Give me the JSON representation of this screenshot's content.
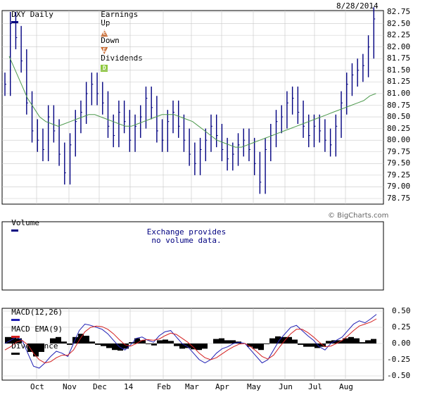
{
  "header": {
    "symbol_label": "DXY Daily",
    "earnings_label": "Earnings",
    "up_label": "Up",
    "up_badge": "E",
    "down_label": "Down",
    "down_badge": "E",
    "dividends_label": "Dividends",
    "dividends_badge": "D",
    "date": "8/28/2014"
  },
  "volume_panel": {
    "title": "Volume",
    "credit": "© BigCharts.com",
    "note": "Exchange provides\nno volume data."
  },
  "macd_panel": {
    "macd_label": "MACD(12,26)",
    "ema_label": "MACD EMA(9)",
    "divergence_label": "Divergence"
  },
  "colors": {
    "price": "#000080",
    "moving_average": "#4e9a4e",
    "macd": "#1f1fb4",
    "macd_ema": "#d42020",
    "divergence": "#000000",
    "grid": "#c8c8c8"
  },
  "chart_data": [
    {
      "type": "ohlc",
      "title": "DXY Daily",
      "x_labels": [
        "Oct",
        "Nov",
        "Dec",
        "14",
        "Feb",
        "Mar",
        "Apr",
        "May",
        "Jun",
        "Jul",
        "Aug"
      ],
      "y_ticks": [
        "82.75",
        "82.50",
        "82.25",
        "82.00",
        "81.75",
        "81.50",
        "81.25",
        "81.00",
        "80.75",
        "80.50",
        "80.25",
        "80.00",
        "79.75",
        "79.50",
        "79.25",
        "79.00",
        "78.75"
      ],
      "ylim": [
        78.75,
        82.75
      ],
      "grid": true,
      "close": [
        81.2,
        82.5,
        82.2,
        81.7,
        80.8,
        80.2,
        80.0,
        79.8,
        80.5,
        80.2,
        79.7,
        79.3,
        79.9,
        80.4,
        80.6,
        81.0,
        81.2,
        81.0,
        80.8,
        80.3,
        80.1,
        80.6,
        80.4,
        80.0,
        80.3,
        80.5,
        80.9,
        80.7,
        80.2,
        80.0,
        80.4,
        80.6,
        80.3,
        80.0,
        79.7,
        79.5,
        79.8,
        80.0,
        80.3,
        80.1,
        79.8,
        79.6,
        79.7,
        79.9,
        80.0,
        79.8,
        79.5,
        79.1,
        79.8,
        80.1,
        80.4,
        80.5,
        80.8,
        80.9,
        80.6,
        80.3,
        80.1,
        80.3,
        80.2,
        80.0,
        79.9,
        80.3,
        80.8,
        81.2,
        81.4,
        81.5,
        81.6,
        82.0,
        82.6
      ],
      "series": [
        {
          "name": "",
          "kind": "moving_average",
          "values": [
            81.8,
            81.5,
            81.2,
            80.9,
            80.7,
            80.5,
            80.4,
            80.35,
            80.3,
            80.35,
            80.4,
            80.45,
            80.5,
            80.55,
            80.55,
            80.5,
            80.45,
            80.4,
            80.35,
            80.3,
            80.3,
            80.35,
            80.4,
            80.45,
            80.5,
            80.55,
            80.55,
            80.55,
            80.5,
            80.45,
            80.4,
            80.3,
            80.2,
            80.1,
            80.0,
            79.95,
            79.9,
            79.85,
            79.85,
            79.9,
            79.95,
            80.0,
            80.05,
            80.1,
            80.15,
            80.2,
            80.25,
            80.3,
            80.35,
            80.4,
            80.45,
            80.5,
            80.55,
            80.6,
            80.65,
            80.7,
            80.75,
            80.8,
            80.85,
            80.95,
            81.0
          ]
        }
      ]
    },
    {
      "type": "line",
      "title": "MACD",
      "x_labels": [
        "Oct",
        "Nov",
        "Dec",
        "14",
        "Feb",
        "Mar",
        "Apr",
        "May",
        "Jun",
        "Jul",
        "Aug"
      ],
      "y_ticks": [
        "0.50",
        "0.25",
        "0.00",
        "-0.25",
        "-0.50"
      ],
      "ylim": [
        -0.5,
        0.5
      ],
      "series": [
        {
          "name": "MACD(12,26)",
          "values": [
            0.0,
            0.05,
            0.1,
            0.05,
            -0.15,
            -0.35,
            -0.38,
            -0.3,
            -0.2,
            -0.12,
            -0.15,
            -0.2,
            0.0,
            0.2,
            0.3,
            0.28,
            0.25,
            0.22,
            0.15,
            0.05,
            -0.05,
            -0.1,
            -0.02,
            0.08,
            0.1,
            0.05,
            0.02,
            0.12,
            0.18,
            0.2,
            0.1,
            0.0,
            -0.05,
            -0.15,
            -0.25,
            -0.3,
            -0.25,
            -0.15,
            -0.08,
            -0.05,
            0.0,
            0.02,
            0.0,
            -0.1,
            -0.2,
            -0.3,
            -0.25,
            -0.1,
            0.05,
            0.15,
            0.25,
            0.28,
            0.2,
            0.12,
            0.05,
            -0.05,
            -0.1,
            0.0,
            0.05,
            0.1,
            0.2,
            0.3,
            0.35,
            0.32,
            0.38,
            0.45
          ]
        },
        {
          "name": "MACD EMA(9)",
          "values": [
            -0.1,
            -0.05,
            0.02,
            0.05,
            -0.02,
            -0.15,
            -0.25,
            -0.3,
            -0.28,
            -0.22,
            -0.18,
            -0.18,
            -0.1,
            0.05,
            0.18,
            0.25,
            0.27,
            0.26,
            0.22,
            0.15,
            0.06,
            -0.02,
            -0.04,
            0.0,
            0.05,
            0.06,
            0.05,
            0.07,
            0.12,
            0.16,
            0.14,
            0.08,
            0.02,
            -0.06,
            -0.15,
            -0.22,
            -0.25,
            -0.22,
            -0.16,
            -0.1,
            -0.05,
            -0.01,
            0.0,
            -0.05,
            -0.12,
            -0.2,
            -0.24,
            -0.18,
            -0.06,
            0.05,
            0.15,
            0.22,
            0.22,
            0.17,
            0.1,
            0.02,
            -0.05,
            -0.04,
            0.0,
            0.05,
            0.12,
            0.2,
            0.27,
            0.3,
            0.33,
            0.38
          ]
        }
      ]
    },
    {
      "type": "bar",
      "title": "Divergence",
      "values": [
        0.1,
        0.1,
        0.08,
        0.0,
        -0.13,
        -0.2,
        -0.13,
        0.0,
        0.08,
        0.1,
        0.03,
        -0.02,
        0.1,
        0.15,
        0.12,
        0.03,
        -0.02,
        -0.04,
        -0.07,
        -0.1,
        -0.11,
        -0.08,
        0.02,
        0.08,
        0.05,
        -0.01,
        -0.03,
        0.05,
        0.06,
        0.04,
        -0.04,
        -0.08,
        -0.07,
        -0.09,
        -0.1,
        -0.08,
        0.0,
        0.07,
        0.08,
        0.05,
        0.05,
        0.03,
        0.0,
        -0.05,
        -0.08,
        -0.1,
        -0.01,
        0.08,
        0.11,
        0.1,
        0.1,
        0.06,
        -0.02,
        -0.05,
        -0.05,
        -0.07,
        -0.05,
        0.04,
        0.05,
        0.05,
        0.08,
        0.1,
        0.08,
        0.02,
        0.05,
        0.07
      ]
    }
  ]
}
